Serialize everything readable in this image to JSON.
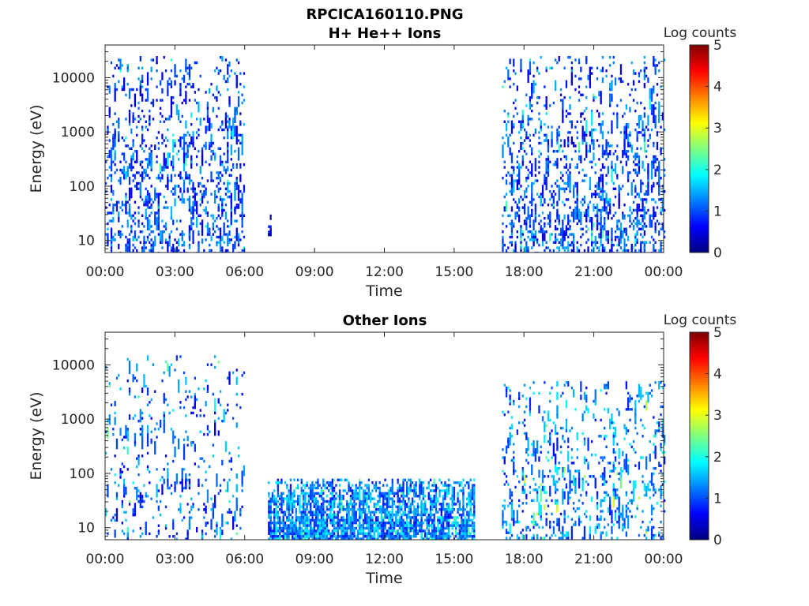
{
  "figure": {
    "filename": "RPCICA160110.PNG"
  },
  "colors": {
    "colormap": [
      "#00007f",
      "#0000ff",
      "#007fff",
      "#00ffff",
      "#7fff7f",
      "#ffff00",
      "#ff7f00",
      "#ff0000",
      "#7f0000"
    ],
    "axis": "#262626",
    "background": "#ffffff"
  },
  "chart_data": [
    {
      "type": "heatmap",
      "title": "H+ He++ Ions",
      "xlabel": "Time",
      "ylabel": "Energy (eV)",
      "x_ticks": [
        "00:00",
        "03:00",
        "06:00",
        "09:00",
        "12:00",
        "15:00",
        "18:00",
        "21:00",
        "00:00"
      ],
      "x_range_hours": [
        0,
        24
      ],
      "y_scale": "log",
      "y_ticks": [
        10,
        100,
        1000,
        10000
      ],
      "y_tick_labels": [
        "10",
        "100",
        "1000",
        "10000"
      ],
      "ylim": [
        6,
        40000
      ],
      "colorbar": {
        "label": "Log counts",
        "range": [
          0,
          5
        ],
        "ticks": [
          "0",
          "1",
          "2",
          "3",
          "4",
          "5"
        ]
      },
      "regions": [
        {
          "x_start": 0.0,
          "x_end": 5.95,
          "e_min": 6,
          "e_max": 25000,
          "density": 0.16,
          "mean_level": 0.9,
          "peak_level": 2.3
        },
        {
          "x_start": 7.0,
          "x_end": 7.1,
          "e_min": 12,
          "e_max": 30,
          "density": 0.35,
          "mean_level": 0.5,
          "peak_level": 0.8
        },
        {
          "x_start": 17.05,
          "x_end": 24.0,
          "e_min": 6,
          "e_max": 25000,
          "density": 0.17,
          "mean_level": 0.9,
          "peak_level": 2.4
        }
      ]
    },
    {
      "type": "heatmap",
      "title": "Other Ions",
      "xlabel": "Time",
      "ylabel": "Energy (eV)",
      "x_ticks": [
        "00:00",
        "03:00",
        "06:00",
        "09:00",
        "12:00",
        "15:00",
        "18:00",
        "21:00",
        "00:00"
      ],
      "x_range_hours": [
        0,
        24
      ],
      "y_scale": "log",
      "y_ticks": [
        10,
        100,
        1000,
        10000
      ],
      "y_tick_labels": [
        "10",
        "100",
        "1000",
        "10000"
      ],
      "ylim": [
        6,
        40000
      ],
      "colorbar": {
        "label": "Log counts",
        "range": [
          0,
          5
        ],
        "ticks": [
          "0",
          "1",
          "2",
          "3",
          "4",
          "5"
        ]
      },
      "regions": [
        {
          "x_start": 0.0,
          "x_end": 5.95,
          "e_min": 6,
          "e_max": 15000,
          "density": 0.07,
          "mean_level": 1.0,
          "peak_level": 2.6
        },
        {
          "x_start": 7.0,
          "x_end": 15.9,
          "e_min": 6,
          "e_max": 80,
          "density": 0.55,
          "mean_level": 1.2,
          "peak_level": 2.5
        },
        {
          "x_start": 17.05,
          "x_end": 24.0,
          "e_min": 6,
          "e_max": 5000,
          "density": 0.13,
          "mean_level": 1.2,
          "peak_level": 3.0
        }
      ]
    }
  ]
}
